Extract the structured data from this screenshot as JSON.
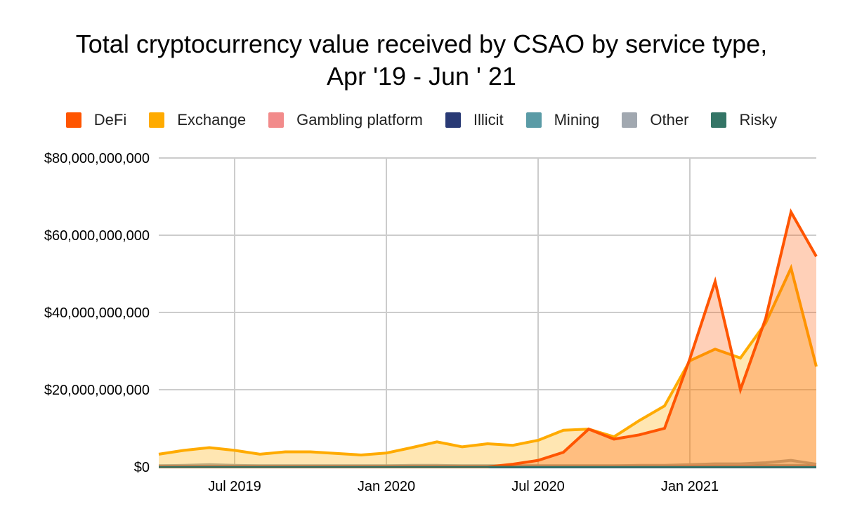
{
  "chart_data": {
    "type": "area",
    "title": "Total cryptocurrency value received by CSAO by service type,",
    "subtitle": "Apr '19 - Jun ' 21",
    "xlabel": "",
    "ylabel": "",
    "ylim": [
      0,
      80000000000
    ],
    "yticks": [
      "$0",
      "$20,000,000,000",
      "$40,000,000,000",
      "$60,000,000,000",
      "$80,000,000,000"
    ],
    "ytick_values": [
      0,
      20000000000,
      40000000000,
      60000000000,
      80000000000
    ],
    "xticks": [
      {
        "label": "Jul 2019",
        "month": "2019-07"
      },
      {
        "label": "Jan 2020",
        "month": "2020-01"
      },
      {
        "label": "Jul 2020",
        "month": "2020-07"
      },
      {
        "label": "Jan 2021",
        "month": "2021-01"
      }
    ],
    "grid": true,
    "legend_position": "top",
    "x": [
      "2019-04",
      "2019-05",
      "2019-06",
      "2019-07",
      "2019-08",
      "2019-09",
      "2019-10",
      "2019-11",
      "2019-12",
      "2020-01",
      "2020-02",
      "2020-03",
      "2020-04",
      "2020-05",
      "2020-06",
      "2020-07",
      "2020-08",
      "2020-09",
      "2020-10",
      "2020-11",
      "2020-12",
      "2021-01",
      "2021-02",
      "2021-03",
      "2021-04",
      "2021-05",
      "2021-06"
    ],
    "units_note_hidden": "",
    "series": [
      {
        "name": "DeFi",
        "color": "#ff5500",
        "fill": "rgba(255,85,0,0.28)",
        "values": [
          0,
          0,
          0,
          0,
          0,
          0,
          0,
          0,
          0,
          0,
          0,
          0,
          0,
          0,
          0.7,
          1.7,
          3.8,
          9.8,
          7.2,
          8.3,
          10.0,
          28.0,
          48.0,
          20.0,
          38.5,
          66.0,
          54.5
        ]
      },
      {
        "name": "Exchange",
        "color": "#ffab00",
        "fill": "rgba(255,171,0,0.3)",
        "values": [
          3.3,
          4.3,
          5.0,
          4.3,
          3.3,
          3.9,
          3.9,
          3.5,
          3.1,
          3.6,
          5.0,
          6.5,
          5.2,
          6.0,
          5.6,
          6.9,
          9.5,
          9.8,
          7.8,
          12.0,
          15.8,
          27.5,
          30.5,
          28.2,
          37.3,
          51.5,
          26.0
        ]
      },
      {
        "name": "Gambling platform",
        "color": "#f28b8b",
        "fill": "rgba(242,139,139,0.3)",
        "values": [
          0.1,
          0.1,
          0.1,
          0.1,
          0.1,
          0.1,
          0.1,
          0.1,
          0.1,
          0.1,
          0.1,
          0.1,
          0.1,
          0.1,
          0.1,
          0.1,
          0.1,
          0.1,
          0.1,
          0.1,
          0.1,
          0.2,
          0.2,
          0.2,
          0.2,
          0.2,
          0.2
        ]
      },
      {
        "name": "Illicit",
        "color": "#293a75",
        "fill": "rgba(41,58,117,0.3)",
        "values": [
          0,
          0,
          0,
          0,
          0,
          0,
          0,
          0,
          0,
          0,
          0,
          0,
          0,
          0,
          0,
          0,
          0,
          0,
          0,
          0,
          0,
          0,
          0,
          0,
          0,
          0,
          0
        ]
      },
      {
        "name": "Mining",
        "color": "#5a9ba6",
        "fill": "rgba(90,155,166,0.3)",
        "values": [
          0.1,
          0.1,
          0.1,
          0.1,
          0.1,
          0.1,
          0.1,
          0.1,
          0.1,
          0.1,
          0.1,
          0.1,
          0.1,
          0.1,
          0.1,
          0.1,
          0.1,
          0.1,
          0.1,
          0.1,
          0.1,
          0.1,
          0.1,
          0.1,
          0.1,
          0.1,
          0.1
        ]
      },
      {
        "name": "Other",
        "color": "#a1a8b0",
        "fill": "rgba(161,168,176,0.3)",
        "values": [
          0.3,
          0.4,
          0.6,
          0.4,
          0.3,
          0.3,
          0.3,
          0.3,
          0.3,
          0.3,
          0.4,
          0.4,
          0.3,
          0.3,
          0.3,
          0.3,
          0.3,
          0.3,
          0.3,
          0.4,
          0.4,
          0.6,
          0.8,
          0.8,
          1.1,
          1.7,
          0.7
        ]
      },
      {
        "name": "Risky",
        "color": "#347566",
        "fill": "rgba(52,117,102,0.3)",
        "values": [
          0.3,
          0.3,
          0.3,
          0.3,
          0.3,
          0.3,
          0.3,
          0.3,
          0.3,
          0.3,
          0.3,
          0.3,
          0.3,
          0.3,
          0.3,
          0.3,
          0.3,
          0.3,
          0.3,
          0.3,
          0.3,
          0.3,
          0.3,
          0.3,
          0.3,
          0.3,
          0.3
        ]
      }
    ],
    "values_unit": "billion USD"
  }
}
